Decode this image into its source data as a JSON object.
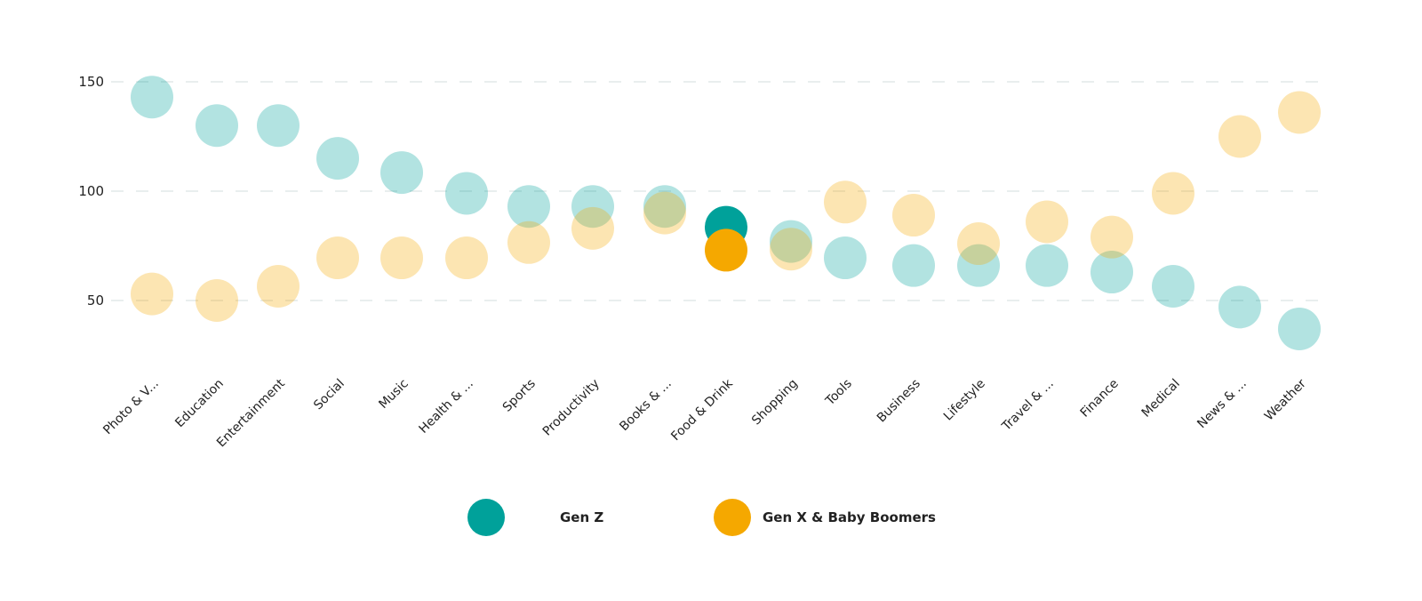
{
  "chart_data": {
    "type": "scatter",
    "categories": [
      "Photo & V...",
      "Education",
      "Entertainment",
      "Social",
      "Music",
      "Health & ...",
      "Sports",
      "Productivity",
      "Books & ...",
      "Food & Drink",
      "Shopping",
      "Tools",
      "Business",
      "Lifestyle",
      "Travel & ...",
      "Finance",
      "Medical",
      "News & ...",
      "Weather"
    ],
    "series": [
      {
        "name": "Gen Z",
        "color": "#00A19A",
        "values": [
          143,
          130,
          130,
          115,
          108.5,
          99,
          93,
          93,
          93,
          83.5,
          77,
          69.5,
          66,
          66,
          66,
          63,
          56.5,
          47,
          37
        ]
      },
      {
        "name": "Gen X & Baby Boomers",
        "color": "#F5A800",
        "values": [
          53,
          50,
          56.5,
          69.5,
          69.5,
          69.5,
          76.5,
          83,
          90,
          73,
          73.5,
          95,
          89,
          76,
          86,
          79,
          99,
          125,
          136
        ]
      }
    ],
    "highlighted_category": "Food & Drink",
    "yticks": [
      50,
      100,
      150
    ],
    "ylim": [
      20,
      165
    ],
    "grid": true,
    "legend_position": "bottom"
  }
}
